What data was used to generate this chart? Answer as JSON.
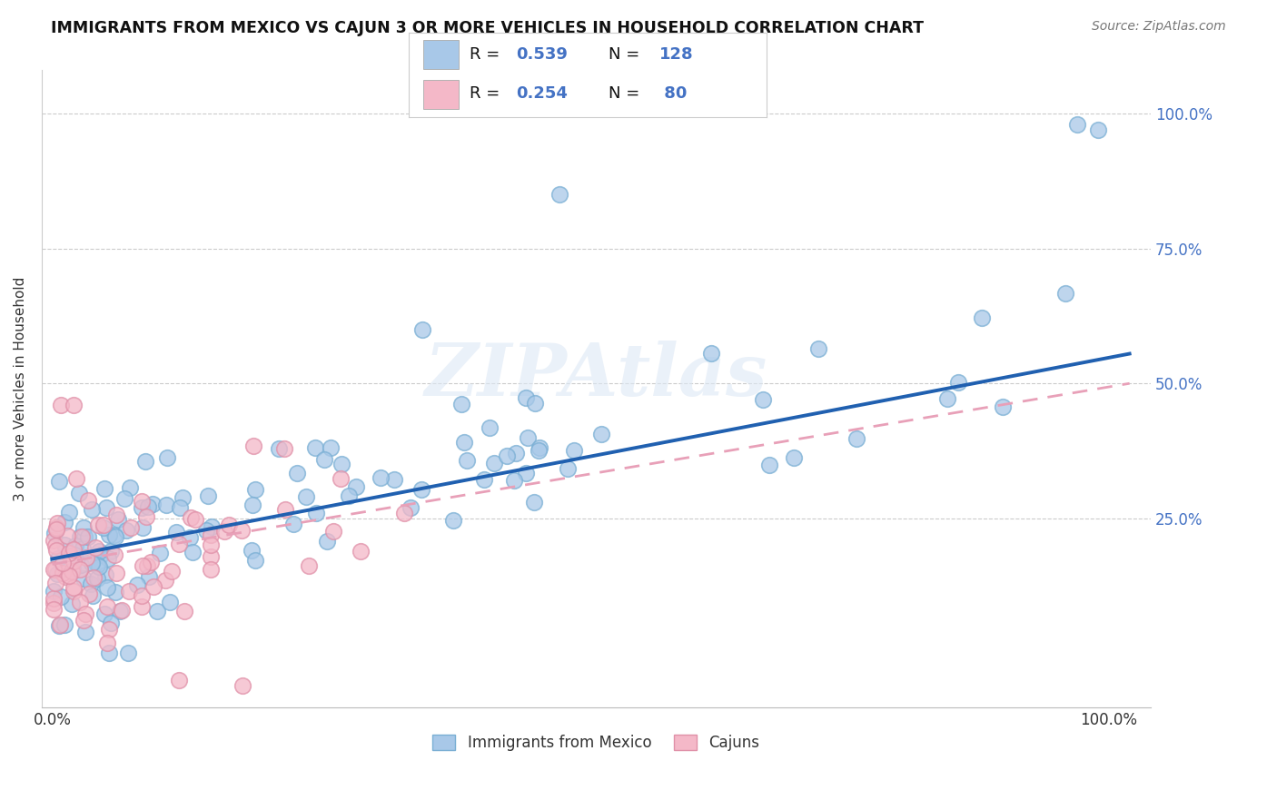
{
  "title": "IMMIGRANTS FROM MEXICO VS CAJUN 3 OR MORE VEHICLES IN HOUSEHOLD CORRELATION CHART",
  "source": "Source: ZipAtlas.com",
  "ylabel": "3 or more Vehicles in Household",
  "legend_label1": "Immigrants from Mexico",
  "legend_label2": "Cajuns",
  "r1": 0.539,
  "n1": 128,
  "r2": 0.254,
  "n2": 80,
  "watermark": "ZIPAtlas",
  "color_blue": "#a8c8e8",
  "color_blue_edge": "#7aafd4",
  "color_blue_line": "#2060b0",
  "color_pink": "#f4b8c8",
  "color_pink_edge": "#e090a8",
  "color_pink_line": "#e8a0b8",
  "ytick_color": "#4472c4",
  "background": "#ffffff",
  "grid_color": "#cccccc",
  "legend_r_color": "#000000",
  "legend_n_color": "#4472c4",
  "legend_val_color": "#4472c4"
}
